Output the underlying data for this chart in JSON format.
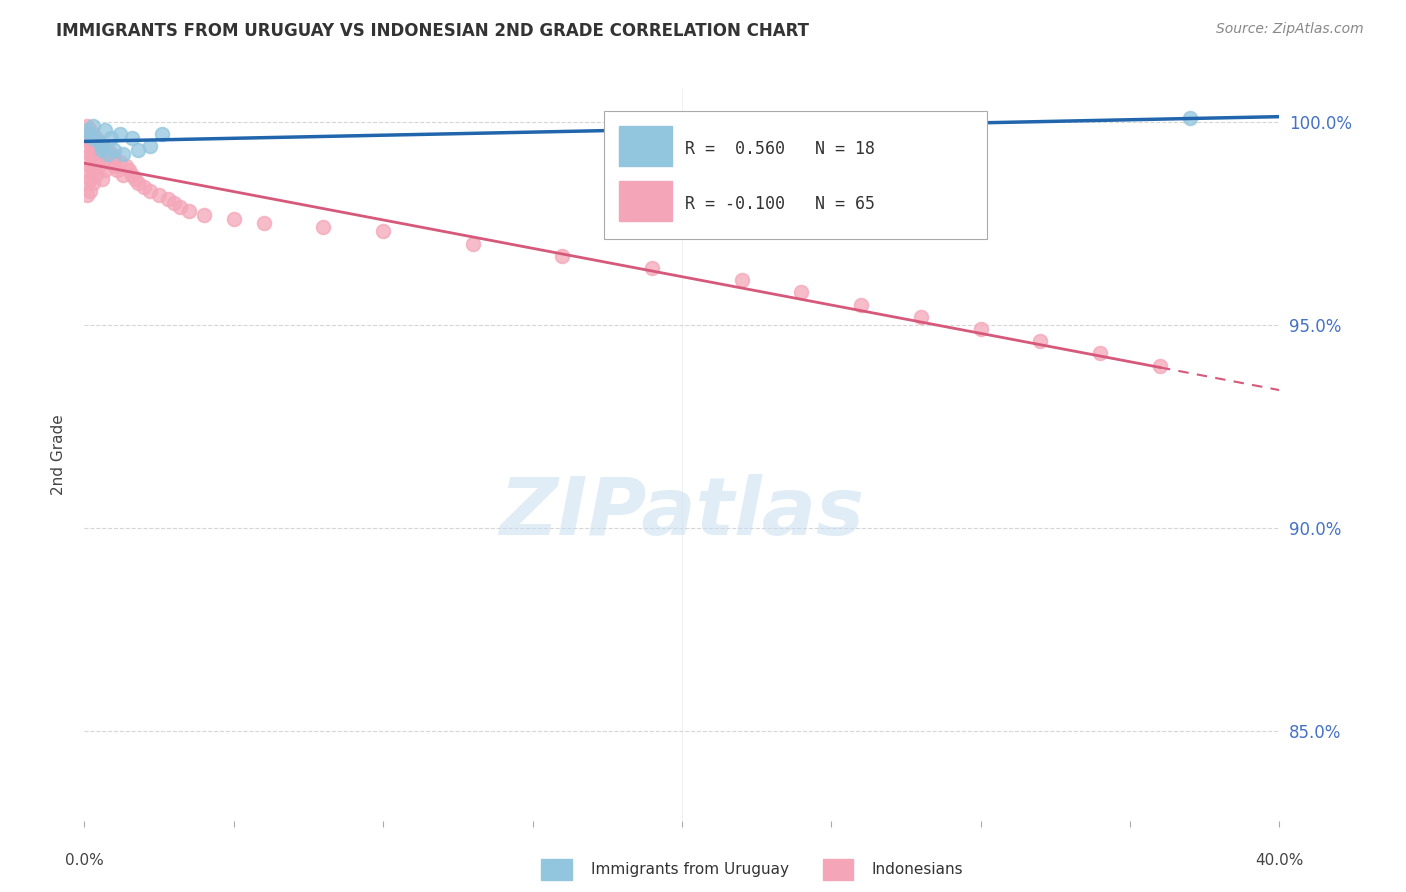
{
  "title": "IMMIGRANTS FROM URUGUAY VS INDONESIAN 2ND GRADE CORRELATION CHART",
  "source": "Source: ZipAtlas.com",
  "ylabel": "2nd Grade",
  "xlim": [
    0.0,
    0.4
  ],
  "ylim": [
    0.828,
    1.008
  ],
  "yticks": [
    0.85,
    0.9,
    0.95,
    1.0
  ],
  "ytick_labels": [
    "85.0%",
    "90.0%",
    "95.0%",
    "100.0%"
  ],
  "uruguay_color": "#92c5de",
  "indonesian_color": "#f4a6b8",
  "trendline_uruguay_color": "#2166ac",
  "trendline_indonesian_color": "#d6587a",
  "background_color": "#ffffff",
  "grid_color": "#cccccc",
  "uruguay_x": [
    0.001,
    0.002,
    0.003,
    0.003,
    0.005,
    0.006,
    0.006,
    0.007,
    0.008,
    0.009,
    0.01,
    0.012,
    0.013,
    0.016,
    0.018,
    0.022,
    0.026,
    0.37
  ],
  "uruguay_y": [
    0.998,
    0.997,
    0.999,
    0.996,
    0.995,
    0.994,
    0.993,
    0.998,
    0.992,
    0.996,
    0.993,
    0.997,
    0.992,
    0.996,
    0.993,
    0.994,
    0.997,
    1.001
  ],
  "indonesian_x": [
    0.001,
    0.001,
    0.001,
    0.001,
    0.001,
    0.001,
    0.001,
    0.002,
    0.002,
    0.002,
    0.002,
    0.002,
    0.002,
    0.003,
    0.003,
    0.003,
    0.003,
    0.003,
    0.004,
    0.004,
    0.004,
    0.004,
    0.005,
    0.005,
    0.005,
    0.006,
    0.006,
    0.007,
    0.007,
    0.008,
    0.008,
    0.009,
    0.01,
    0.01,
    0.011,
    0.012,
    0.013,
    0.014,
    0.015,
    0.016,
    0.017,
    0.018,
    0.02,
    0.022,
    0.025,
    0.028,
    0.03,
    0.032,
    0.035,
    0.04,
    0.05,
    0.06,
    0.08,
    0.1,
    0.13,
    0.16,
    0.19,
    0.22,
    0.24,
    0.26,
    0.28,
    0.3,
    0.32,
    0.34,
    0.36
  ],
  "indonesian_y": [
    0.998,
    0.994,
    0.99,
    0.987,
    0.984,
    0.981,
    0.978,
    0.997,
    0.993,
    0.989,
    0.986,
    0.983,
    0.98,
    0.996,
    0.992,
    0.988,
    0.984,
    0.981,
    0.995,
    0.991,
    0.987,
    0.983,
    0.994,
    0.99,
    0.986,
    0.993,
    0.989,
    0.992,
    0.988,
    0.991,
    0.987,
    0.99,
    0.993,
    0.989,
    0.985,
    0.988,
    0.987,
    0.986,
    0.985,
    0.984,
    0.986,
    0.985,
    0.984,
    0.983,
    0.982,
    0.981,
    0.98,
    0.979,
    0.978,
    0.977,
    0.976,
    0.975,
    0.974,
    0.973,
    0.972,
    0.971,
    0.97,
    0.969,
    0.968,
    0.967,
    0.966,
    0.965,
    0.964,
    0.963,
    0.962
  ]
}
